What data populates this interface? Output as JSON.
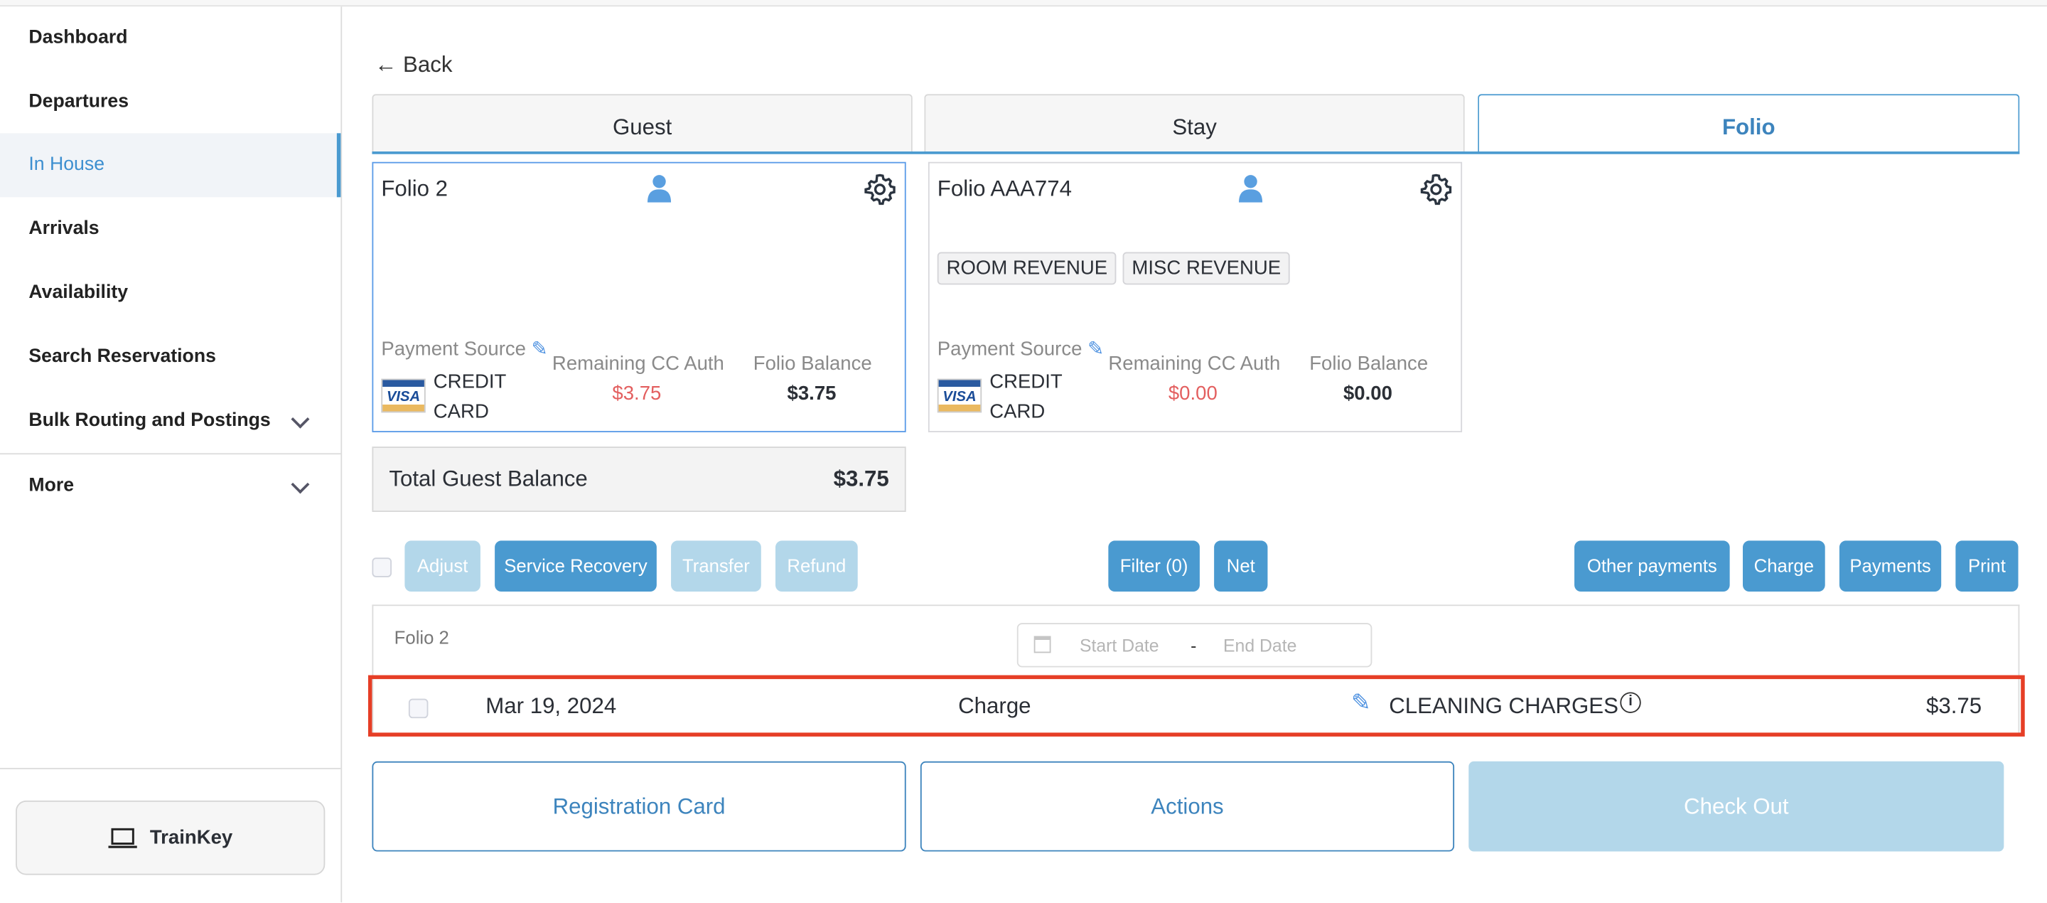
{
  "sidebar": {
    "items": [
      {
        "label": "Dashboard"
      },
      {
        "label": "Departures"
      },
      {
        "label": "In House",
        "active": true
      },
      {
        "label": "Arrivals"
      },
      {
        "label": "Availability"
      },
      {
        "label": "Search Reservations"
      },
      {
        "label": "Bulk Routing and Postings"
      },
      {
        "label": "More"
      }
    ],
    "trainkey": "TrainKey"
  },
  "back": "Back",
  "tabs": [
    {
      "label": "Guest"
    },
    {
      "label": "Stay"
    },
    {
      "label": "Folio",
      "active": true
    }
  ],
  "folios": [
    {
      "title": "Folio 2",
      "tags": [],
      "payment_source_label": "Payment Source",
      "card_type": "VISA",
      "payment_method": [
        "CREDIT",
        "CARD"
      ],
      "remaining_label": "Remaining CC Auth",
      "remaining": "$3.75",
      "balance_label": "Folio Balance",
      "balance": "$3.75",
      "selected": true
    },
    {
      "title": "Folio AAA774",
      "tags": [
        "ROOM REVENUE",
        "MISC REVENUE"
      ],
      "payment_source_label": "Payment Source",
      "card_type": "VISA",
      "payment_method": [
        "CREDIT",
        "CARD"
      ],
      "remaining_label": "Remaining CC Auth",
      "remaining": "$0.00",
      "balance_label": "Folio Balance",
      "balance": "$0.00"
    }
  ],
  "total": {
    "label": "Total Guest Balance",
    "value": "$3.75"
  },
  "actions": {
    "adjust": "Adjust",
    "service_recovery": "Service Recovery",
    "transfer": "Transfer",
    "refund": "Refund",
    "filter": "Filter (0)",
    "net": "Net",
    "other_payments": "Other payments",
    "charge": "Charge",
    "payments": "Payments",
    "print": "Print"
  },
  "table": {
    "folio_label": "Folio 2",
    "start_placeholder": "Start Date",
    "separator": "-",
    "end_placeholder": "End Date",
    "rows": [
      {
        "date": "Mar 19, 2024",
        "type": "Charge",
        "description": "CLEANING CHARGES",
        "amount": "$3.75"
      }
    ]
  },
  "footer": {
    "registration_card": "Registration Card",
    "actions": "Actions",
    "check_out": "Check Out"
  },
  "colors": {
    "accent": "#4a9ad0",
    "highlight": "#e63e26",
    "negative": "#e35f5f"
  }
}
